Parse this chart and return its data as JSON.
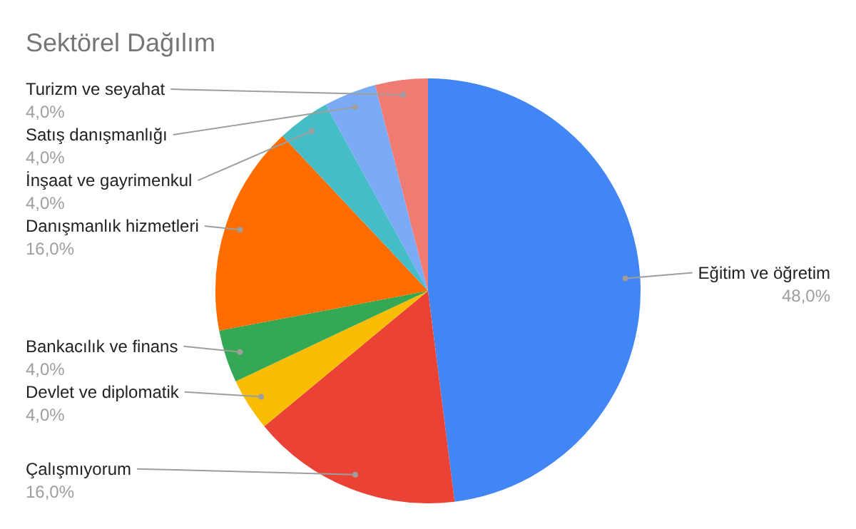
{
  "chart_data": {
    "type": "pie",
    "title": "Sektörel Dağılım",
    "categories": [
      "Eğitim ve öğretim",
      "Çalışmıyorum",
      "Devlet ve diplomatik",
      "Bankacılık ve finans",
      "Danışmanlık hizmetleri",
      "İnşaat ve gayrimenkul",
      "Satış danışmanlığı",
      "Turizm ve seyahat"
    ],
    "values": [
      48,
      16,
      4,
      4,
      16,
      4,
      4,
      4
    ],
    "colors": [
      "#4285f4",
      "#ea4335",
      "#fbbc04",
      "#34a853",
      "#ff6d01",
      "#46bdc6",
      "#7baaf7",
      "#f07b72"
    ],
    "value_labels": [
      "48,0%",
      "16,0%",
      "4,0%",
      "4,0%",
      "16,0%",
      "4,0%",
      "4,0%",
      "4,0%"
    ]
  }
}
